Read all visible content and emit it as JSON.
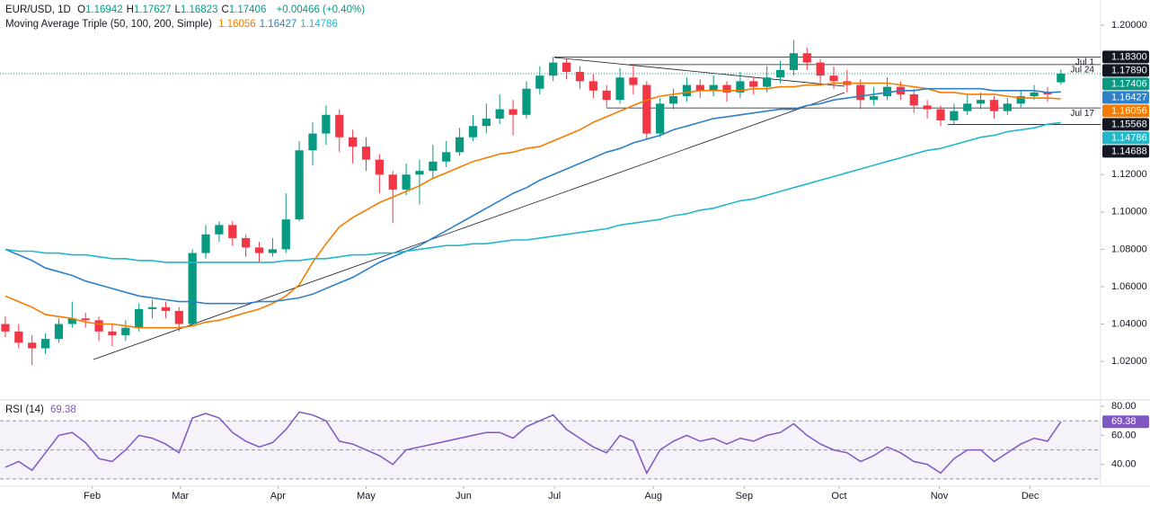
{
  "chart_data": [
    {
      "type": "candlestick",
      "symbol": "EUR/USD, 1D",
      "ohlc_labels": [
        "O",
        "H",
        "L",
        "C"
      ],
      "change": "+0.00466 (+0.40%)",
      "legend_title": "Moving Average Triple (50, 100, 200, Simple)",
      "up_color": "#089981",
      "down_color": "#f23645",
      "candles": [
        [
          1.04,
          1.044,
          1.033,
          1.036
        ],
        [
          1.036,
          1.04,
          1.027,
          1.03
        ],
        [
          1.03,
          1.034,
          1.018,
          1.027
        ],
        [
          1.027,
          1.035,
          1.024,
          1.032
        ],
        [
          1.032,
          1.043,
          1.03,
          1.04
        ],
        [
          1.04,
          1.052,
          1.038,
          1.043
        ],
        [
          1.043,
          1.046,
          1.038,
          1.042
        ],
        [
          1.042,
          1.044,
          1.031,
          1.036
        ],
        [
          1.036,
          1.04,
          1.028,
          1.034
        ],
        [
          1.034,
          1.042,
          1.031,
          1.038
        ],
        [
          1.038,
          1.051,
          1.036,
          1.048
        ],
        [
          1.048,
          1.053,
          1.043,
          1.049
        ],
        [
          1.049,
          1.052,
          1.043,
          1.047
        ],
        [
          1.047,
          1.049,
          1.036,
          1.04
        ],
        [
          1.04,
          1.08,
          1.039,
          1.078
        ],
        [
          1.078,
          1.093,
          1.075,
          1.088
        ],
        [
          1.088,
          1.095,
          1.084,
          1.093
        ],
        [
          1.093,
          1.095,
          1.082,
          1.086
        ],
        [
          1.086,
          1.088,
          1.076,
          1.081
        ],
        [
          1.081,
          1.084,
          1.073,
          1.078
        ],
        [
          1.078,
          1.086,
          1.076,
          1.08
        ],
        [
          1.08,
          1.11,
          1.078,
          1.096
        ],
        [
          1.096,
          1.138,
          1.095,
          1.133
        ],
        [
          1.133,
          1.148,
          1.125,
          1.142
        ],
        [
          1.142,
          1.157,
          1.136,
          1.152
        ],
        [
          1.152,
          1.155,
          1.132,
          1.14
        ],
        [
          1.14,
          1.144,
          1.126,
          1.135
        ],
        [
          1.135,
          1.14,
          1.122,
          1.128
        ],
        [
          1.128,
          1.131,
          1.11,
          1.12
        ],
        [
          1.12,
          1.122,
          1.094,
          1.112
        ],
        [
          1.112,
          1.126,
          1.109,
          1.12
        ],
        [
          1.12,
          1.128,
          1.104,
          1.122
        ],
        [
          1.122,
          1.136,
          1.118,
          1.127
        ],
        [
          1.127,
          1.138,
          1.124,
          1.132
        ],
        [
          1.132,
          1.145,
          1.13,
          1.14
        ],
        [
          1.14,
          1.152,
          1.138,
          1.146
        ],
        [
          1.146,
          1.158,
          1.142,
          1.15
        ],
        [
          1.15,
          1.163,
          1.147,
          1.155
        ],
        [
          1.155,
          1.16,
          1.141,
          1.152
        ],
        [
          1.152,
          1.17,
          1.15,
          1.166
        ],
        [
          1.166,
          1.178,
          1.163,
          1.173
        ],
        [
          1.173,
          1.183,
          1.17,
          1.18
        ],
        [
          1.18,
          1.182,
          1.171,
          1.175
        ],
        [
          1.175,
          1.178,
          1.166,
          1.17
        ],
        [
          1.17,
          1.174,
          1.161,
          1.165
        ],
        [
          1.165,
          1.168,
          1.156,
          1.16
        ],
        [
          1.16,
          1.177,
          1.158,
          1.172
        ],
        [
          1.172,
          1.179,
          1.163,
          1.168
        ],
        [
          1.168,
          1.17,
          1.139,
          1.142
        ],
        [
          1.142,
          1.161,
          1.14,
          1.158
        ],
        [
          1.158,
          1.166,
          1.155,
          1.162
        ],
        [
          1.162,
          1.172,
          1.159,
          1.168
        ],
        [
          1.168,
          1.171,
          1.161,
          1.165
        ],
        [
          1.165,
          1.173,
          1.162,
          1.168
        ],
        [
          1.168,
          1.17,
          1.159,
          1.164
        ],
        [
          1.164,
          1.175,
          1.161,
          1.17
        ],
        [
          1.17,
          1.172,
          1.163,
          1.167
        ],
        [
          1.167,
          1.178,
          1.164,
          1.172
        ],
        [
          1.172,
          1.181,
          1.169,
          1.176
        ],
        [
          1.176,
          1.192,
          1.173,
          1.185
        ],
        [
          1.185,
          1.188,
          1.176,
          1.18
        ],
        [
          1.18,
          1.182,
          1.168,
          1.173
        ],
        [
          1.173,
          1.178,
          1.166,
          1.17
        ],
        [
          1.17,
          1.176,
          1.164,
          1.168
        ],
        [
          1.168,
          1.171,
          1.155,
          1.16
        ],
        [
          1.16,
          1.167,
          1.157,
          1.162
        ],
        [
          1.162,
          1.172,
          1.16,
          1.167
        ],
        [
          1.167,
          1.17,
          1.16,
          1.163
        ],
        [
          1.163,
          1.166,
          1.153,
          1.157
        ],
        [
          1.157,
          1.16,
          1.15,
          1.155
        ],
        [
          1.155,
          1.157,
          1.146,
          1.149
        ],
        [
          1.149,
          1.158,
          1.147,
          1.154
        ],
        [
          1.154,
          1.163,
          1.152,
          1.158
        ],
        [
          1.158,
          1.164,
          1.155,
          1.16
        ],
        [
          1.16,
          1.162,
          1.15,
          1.154
        ],
        [
          1.154,
          1.161,
          1.152,
          1.158
        ],
        [
          1.158,
          1.165,
          1.156,
          1.162
        ],
        [
          1.162,
          1.168,
          1.16,
          1.164
        ],
        [
          1.164,
          1.167,
          1.159,
          1.163
        ],
        [
          1.16942,
          1.17627,
          1.16823,
          1.17406
        ]
      ],
      "series": [
        {
          "color": "#f57c00",
          "values": [
            1.055,
            1.052,
            1.049,
            1.045,
            1.044,
            1.043,
            1.041,
            1.04,
            1.04,
            1.039,
            1.038,
            1.038,
            1.038,
            1.038,
            1.039,
            1.041,
            1.042,
            1.044,
            1.046,
            1.048,
            1.051,
            1.055,
            1.061,
            1.073,
            1.083,
            1.092,
            1.097,
            1.101,
            1.105,
            1.108,
            1.111,
            1.114,
            1.118,
            1.121,
            1.124,
            1.127,
            1.129,
            1.131,
            1.132,
            1.134,
            1.135,
            1.138,
            1.141,
            1.144,
            1.148,
            1.151,
            1.154,
            1.157,
            1.16,
            1.162,
            1.163,
            1.164,
            1.165,
            1.165,
            1.165,
            1.165,
            1.166,
            1.166,
            1.167,
            1.167,
            1.168,
            1.168,
            1.169,
            1.169,
            1.169,
            1.169,
            1.169,
            1.168,
            1.167,
            1.166,
            1.164,
            1.164,
            1.163,
            1.163,
            1.163,
            1.162,
            1.161,
            1.161,
            1.161,
            1.16056
          ]
        },
        {
          "color": "#2f80c8",
          "values": [
            1.08,
            1.077,
            1.074,
            1.07,
            1.068,
            1.066,
            1.063,
            1.061,
            1.059,
            1.057,
            1.055,
            1.054,
            1.053,
            1.052,
            1.052,
            1.051,
            1.051,
            1.051,
            1.051,
            1.052,
            1.052,
            1.053,
            1.054,
            1.056,
            1.059,
            1.062,
            1.065,
            1.069,
            1.073,
            1.076,
            1.079,
            1.082,
            1.086,
            1.09,
            1.094,
            1.098,
            1.102,
            1.106,
            1.11,
            1.113,
            1.117,
            1.12,
            1.123,
            1.126,
            1.129,
            1.132,
            1.134,
            1.137,
            1.139,
            1.141,
            1.144,
            1.146,
            1.148,
            1.15,
            1.151,
            1.152,
            1.153,
            1.154,
            1.155,
            1.155,
            1.157,
            1.158,
            1.16,
            1.161,
            1.162,
            1.163,
            1.164,
            1.165,
            1.165,
            1.166,
            1.166,
            1.166,
            1.166,
            1.166,
            1.165,
            1.165,
            1.165,
            1.165,
            1.164,
            1.16427
          ]
        },
        {
          "color": "#22b8cc",
          "values": [
            1.08,
            1.079,
            1.079,
            1.078,
            1.078,
            1.077,
            1.077,
            1.076,
            1.075,
            1.075,
            1.074,
            1.074,
            1.073,
            1.073,
            1.073,
            1.073,
            1.073,
            1.073,
            1.073,
            1.073,
            1.073,
            1.074,
            1.074,
            1.075,
            1.075,
            1.076,
            1.077,
            1.077,
            1.078,
            1.078,
            1.079,
            1.08,
            1.081,
            1.082,
            1.082,
            1.083,
            1.083,
            1.084,
            1.085,
            1.085,
            1.086,
            1.087,
            1.088,
            1.089,
            1.09,
            1.091,
            1.093,
            1.094,
            1.095,
            1.096,
            1.098,
            1.099,
            1.101,
            1.102,
            1.104,
            1.106,
            1.107,
            1.109,
            1.111,
            1.113,
            1.115,
            1.117,
            1.119,
            1.121,
            1.123,
            1.125,
            1.127,
            1.129,
            1.131,
            1.133,
            1.134,
            1.136,
            1.138,
            1.14,
            1.141,
            1.143,
            1.144,
            1.145,
            1.147,
            1.14786
          ]
        }
      ],
      "levels": [
        {
          "name": "Jul 1",
          "value": 1.183,
          "label": "1.18300"
        },
        {
          "name": "Jul 24",
          "value": 1.1789,
          "label": "1.17890"
        },
        {
          "name": "Jul 17",
          "value": 1.15568,
          "label": "1.15568"
        },
        {
          "value": 1.14688,
          "label": "1.14688"
        }
      ],
      "xlim": [
        -0.4,
        81.97
      ],
      "xticks": [
        {
          "value": 6.5,
          "label": "Feb"
        },
        {
          "value": 13.1,
          "label": "Mar"
        },
        {
          "value": 20.4,
          "label": "Apr"
        },
        {
          "value": 27.0,
          "label": "May"
        },
        {
          "value": 34.3,
          "label": "Jun"
        },
        {
          "value": 41.1,
          "label": "Jul"
        },
        {
          "value": 48.5,
          "label": "Aug"
        },
        {
          "value": 55.3,
          "label": "Sep"
        },
        {
          "value": 62.4,
          "label": "Oct"
        },
        {
          "value": 69.9,
          "label": "Nov"
        },
        {
          "value": 76.7,
          "label": "Dec"
        }
      ],
      "ylim": [
        1.0003,
        1.2135
      ],
      "yticks": [
        {
          "value": 1.02,
          "label": "1.02000"
        },
        {
          "value": 1.04,
          "label": "1.04000"
        },
        {
          "value": 1.06,
          "label": "1.06000"
        },
        {
          "value": 1.08,
          "label": "1.08000"
        },
        {
          "value": 1.1,
          "label": "1.10000"
        },
        {
          "value": 1.12,
          "label": "1.12000"
        },
        {
          "value": 1.2,
          "label": "1.20000"
        }
      ],
      "grid": false
    },
    {
      "type": "line",
      "title": "RSI (14)",
      "color": "#7e57c2",
      "values": [
        38,
        42,
        36,
        48,
        60,
        62,
        55,
        44,
        42,
        50,
        60,
        58,
        54,
        48,
        72,
        75,
        72,
        62,
        56,
        52,
        55,
        64,
        76,
        74,
        70,
        56,
        54,
        50,
        46,
        40,
        50,
        52,
        54,
        56,
        58,
        60,
        62,
        62,
        58,
        66,
        70,
        74,
        64,
        58,
        52,
        48,
        60,
        56,
        34,
        50,
        56,
        60,
        56,
        58,
        54,
        58,
        56,
        60,
        62,
        68,
        60,
        54,
        50,
        48,
        42,
        46,
        52,
        48,
        42,
        40,
        34,
        44,
        50,
        50,
        42,
        48,
        54,
        58,
        56,
        69.38
      ],
      "levels": [
        30,
        50,
        70
      ],
      "ylim": [
        25,
        82.5
      ],
      "yticks": [
        {
          "value": 40,
          "label": "40.00"
        },
        {
          "value": 60,
          "label": "60.00"
        },
        {
          "value": 80,
          "label": "80.00"
        }
      ]
    }
  ]
}
